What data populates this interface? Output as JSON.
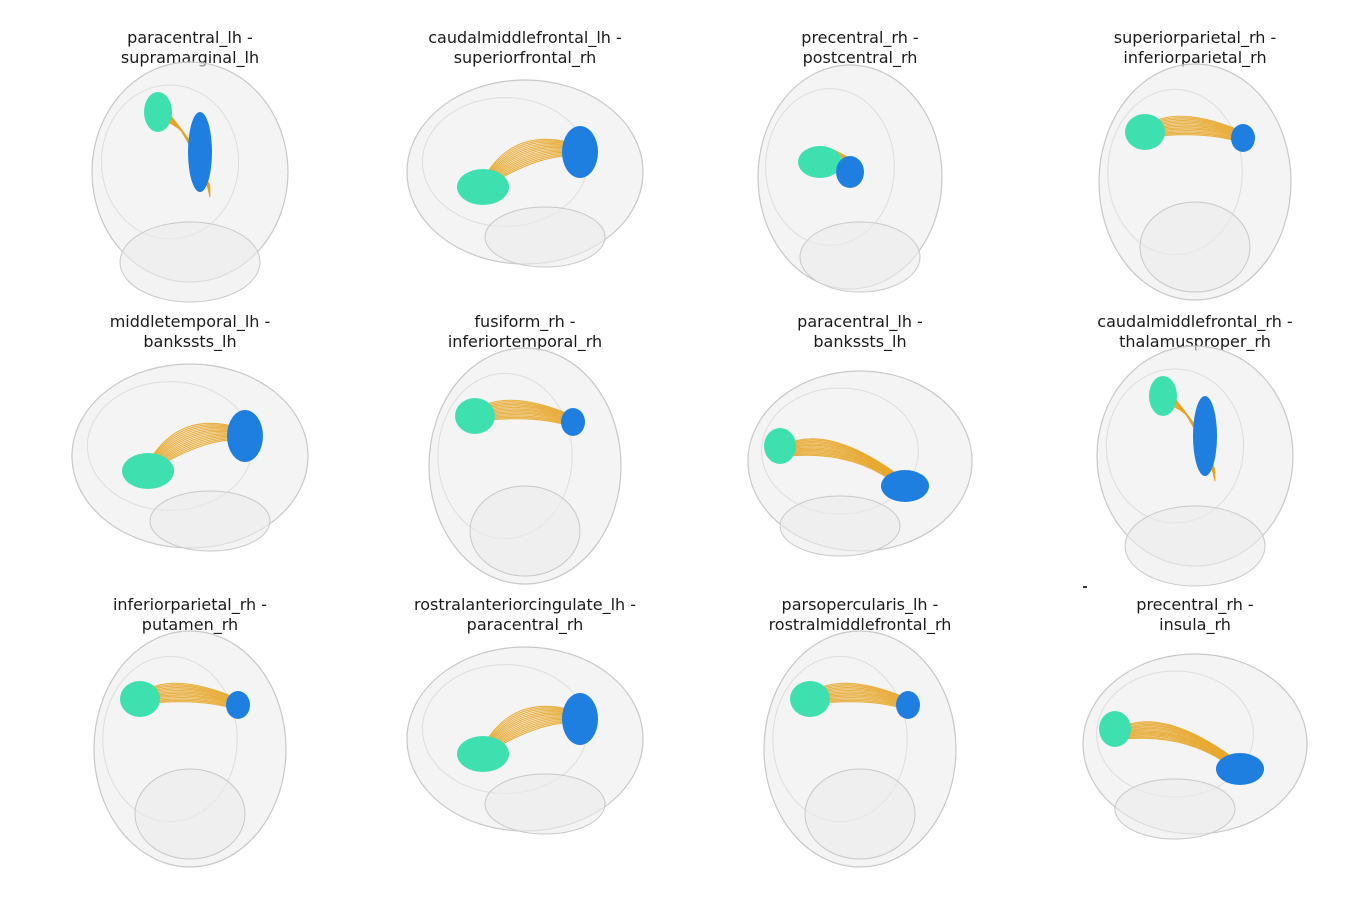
{
  "figure": {
    "panels": [
      {
        "line1": "paracentral_lh -",
        "line2": "supramarginal_lh",
        "view": "back"
      },
      {
        "line1": "caudalmiddlefrontal_lh -",
        "line2": "superiorfrontal_rh",
        "view": "side-left"
      },
      {
        "line1": "precentral_rh -",
        "line2": "postcentral_rh",
        "view": "oblique"
      },
      {
        "line1": "superiorparietal_rh -",
        "line2": "inferiorparietal_rh",
        "view": "top"
      },
      {
        "line1": "middletemporal_lh -",
        "line2": "bankssts_lh",
        "view": "side-left"
      },
      {
        "line1": "fusiform_rh -",
        "line2": "inferiortemporal_rh",
        "view": "top"
      },
      {
        "line1": "paracentral_lh -",
        "line2": "bankssts_lh",
        "view": "side-right"
      },
      {
        "line1": "caudalmiddlefrontal_rh -",
        "line2": "thalamusproper_rh",
        "view": "back"
      },
      {
        "line1": "inferiorparietal_rh -",
        "line2": "putamen_rh",
        "view": "top"
      },
      {
        "line1": "rostralanteriorcingulate_lh -",
        "line2": "paracentral_rh",
        "view": "side-left"
      },
      {
        "line1": "parsopercularis_lh -",
        "line2": "rostralmiddlefrontal_rh",
        "view": "top"
      },
      {
        "line1": "precentral_rh -",
        "line2": "insula_rh",
        "view": "side-right"
      }
    ],
    "colors": {
      "brain_fill": "#ebebeb",
      "brain_edge": "#c8c8c8",
      "tract": "#e6a21e",
      "region_a": "#3ee0b0",
      "region_b": "#1f7fe0"
    }
  }
}
